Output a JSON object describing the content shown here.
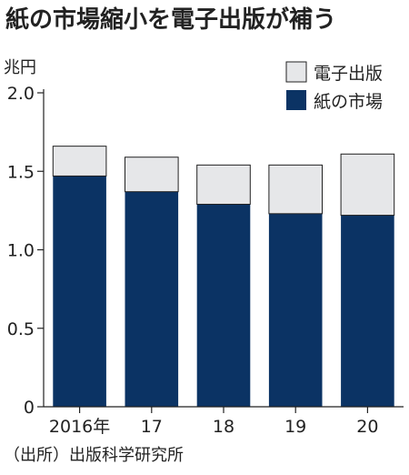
{
  "chart_data": {
    "type": "bar",
    "stacked": true,
    "title": "紙の市場縮小を電子出版が補う",
    "unit_label": "兆円",
    "categories": [
      "2016年",
      "17",
      "18",
      "19",
      "20"
    ],
    "series": [
      {
        "name": "紙の市場",
        "color": "#0b3364",
        "values": [
          1.47,
          1.37,
          1.29,
          1.23,
          1.22
        ]
      },
      {
        "name": "電子出版",
        "color": "#e6e7e9",
        "values": [
          0.19,
          0.22,
          0.25,
          0.31,
          0.39
        ]
      }
    ],
    "ylim": [
      0,
      2.0
    ],
    "yticks": [
      "0",
      "0.5",
      "1.0",
      "1.5",
      "2.0"
    ],
    "legend_position": "top-right",
    "grid": false,
    "source": "（出所）出版科学研究所"
  }
}
